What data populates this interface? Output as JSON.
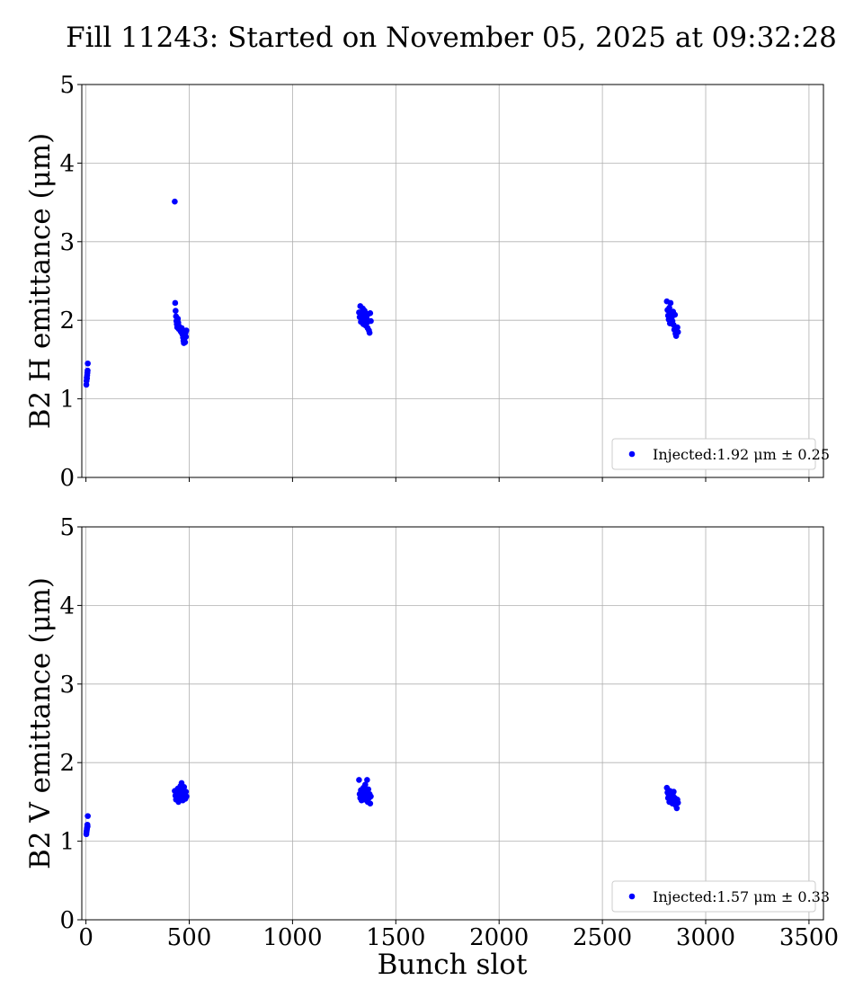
{
  "figure": {
    "title": "Fill 11243: Started on November 05, 2025 at 09:32:28",
    "xlabel": "Bunch slot",
    "point_color": "#0000ff"
  },
  "chart_data": [
    {
      "type": "scatter",
      "ylabel": "B2 H emittance (μm)",
      "xlim": [
        -20,
        3570
      ],
      "ylim": [
        0,
        5
      ],
      "xticks": [
        0,
        500,
        1000,
        1500,
        2000,
        2500,
        3000,
        3500
      ],
      "yticks": [
        0,
        1,
        2,
        3,
        4,
        5
      ],
      "grid": true,
      "show_xtick_labels": false,
      "legend": {
        "label": "Injected:1.92 μm ± 0.25",
        "placement": "lower-right"
      },
      "series": [
        {
          "color": "#0000ff",
          "points": [
            [
              2,
              1.18
            ],
            [
              3,
              1.23
            ],
            [
              4,
              1.27
            ],
            [
              5,
              1.26
            ],
            [
              6,
              1.3
            ],
            [
              7,
              1.33
            ],
            [
              8,
              1.36
            ],
            [
              9,
              1.45
            ],
            [
              430,
              3.51
            ],
            [
              432,
              2.22
            ],
            [
              434,
              2.12
            ],
            [
              436,
              2.05
            ],
            [
              438,
              1.99
            ],
            [
              440,
              1.95
            ],
            [
              442,
              1.91
            ],
            [
              445,
              2.02
            ],
            [
              447,
              1.97
            ],
            [
              449,
              1.89
            ],
            [
              452,
              1.92
            ],
            [
              455,
              1.88
            ],
            [
              458,
              1.86
            ],
            [
              461,
              1.85
            ],
            [
              464,
              1.9
            ],
            [
              467,
              1.82
            ],
            [
              470,
              1.78
            ],
            [
              472,
              1.74
            ],
            [
              474,
              1.71
            ],
            [
              476,
              1.76
            ],
            [
              478,
              1.8
            ],
            [
              480,
              1.72
            ],
            [
              482,
              1.84
            ],
            [
              484,
              1.79
            ],
            [
              486,
              1.87
            ],
            [
              1322,
              2.1
            ],
            [
              1325,
              2.04
            ],
            [
              1328,
              2.18
            ],
            [
              1331,
              1.98
            ],
            [
              1334,
              2.08
            ],
            [
              1337,
              2.02
            ],
            [
              1340,
              2.15
            ],
            [
              1343,
              1.95
            ],
            [
              1346,
              2.06
            ],
            [
              1349,
              2.12
            ],
            [
              1352,
              2.0
            ],
            [
              1355,
              1.93
            ],
            [
              1358,
              2.03
            ],
            [
              1361,
              1.97
            ],
            [
              1364,
              1.9
            ],
            [
              1367,
              2.08
            ],
            [
              1370,
              1.87
            ],
            [
              1373,
              1.84
            ],
            [
              1376,
              2.09
            ],
            [
              1379,
              1.99
            ],
            [
              2812,
              2.24
            ],
            [
              2815,
              2.13
            ],
            [
              2818,
              2.06
            ],
            [
              2821,
              2.01
            ],
            [
              2824,
              2.16
            ],
            [
              2827,
              1.96
            ],
            [
              2830,
              2.22
            ],
            [
              2833,
              2.09
            ],
            [
              2836,
              2.04
            ],
            [
              2839,
              1.99
            ],
            [
              2842,
              2.11
            ],
            [
              2845,
              1.94
            ],
            [
              2848,
              1.88
            ],
            [
              2851,
              2.07
            ],
            [
              2854,
              1.83
            ],
            [
              2857,
              1.8
            ],
            [
              2860,
              1.86
            ],
            [
              2863,
              1.91
            ],
            [
              2866,
              1.85
            ]
          ]
        }
      ]
    },
    {
      "type": "scatter",
      "ylabel": "B2 V emittance (μm)",
      "xlim": [
        -20,
        3570
      ],
      "ylim": [
        0,
        5
      ],
      "xticks": [
        0,
        500,
        1000,
        1500,
        2000,
        2500,
        3000,
        3500
      ],
      "yticks": [
        0,
        1,
        2,
        3,
        4,
        5
      ],
      "grid": true,
      "show_xtick_labels": true,
      "legend": {
        "label": "Injected:1.57 μm ± 0.33",
        "placement": "lower-right"
      },
      "series": [
        {
          "color": "#0000ff",
          "points": [
            [
              2,
              1.09
            ],
            [
              3,
              1.12
            ],
            [
              4,
              1.14
            ],
            [
              5,
              1.16
            ],
            [
              6,
              1.18
            ],
            [
              7,
              1.21
            ],
            [
              8,
              1.19
            ],
            [
              9,
              1.32
            ],
            [
              430,
              1.64
            ],
            [
              433,
              1.58
            ],
            [
              436,
              1.53
            ],
            [
              439,
              1.61
            ],
            [
              442,
              1.56
            ],
            [
              445,
              1.67
            ],
            [
              448,
              1.5
            ],
            [
              451,
              1.6
            ],
            [
              454,
              1.55
            ],
            [
              457,
              1.7
            ],
            [
              460,
              1.63
            ],
            [
              463,
              1.74
            ],
            [
              466,
              1.58
            ],
            [
              469,
              1.52
            ],
            [
              472,
              1.66
            ],
            [
              475,
              1.69
            ],
            [
              478,
              1.6
            ],
            [
              481,
              1.54
            ],
            [
              484,
              1.63
            ],
            [
              487,
              1.57
            ],
            [
              1322,
              1.78
            ],
            [
              1325,
              1.6
            ],
            [
              1328,
              1.55
            ],
            [
              1331,
              1.65
            ],
            [
              1334,
              1.52
            ],
            [
              1337,
              1.62
            ],
            [
              1340,
              1.57
            ],
            [
              1343,
              1.68
            ],
            [
              1346,
              1.53
            ],
            [
              1349,
              1.6
            ],
            [
              1352,
              1.72
            ],
            [
              1355,
              1.58
            ],
            [
              1358,
              1.63
            ],
            [
              1361,
              1.78
            ],
            [
              1364,
              1.5
            ],
            [
              1367,
              1.66
            ],
            [
              1370,
              1.55
            ],
            [
              1373,
              1.6
            ],
            [
              1376,
              1.48
            ],
            [
              1379,
              1.57
            ],
            [
              2812,
              1.68
            ],
            [
              2815,
              1.62
            ],
            [
              2818,
              1.55
            ],
            [
              2821,
              1.59
            ],
            [
              2824,
              1.5
            ],
            [
              2827,
              1.64
            ],
            [
              2830,
              1.57
            ],
            [
              2833,
              1.53
            ],
            [
              2836,
              1.61
            ],
            [
              2839,
              1.48
            ],
            [
              2842,
              1.58
            ],
            [
              2845,
              1.63
            ],
            [
              2848,
              1.52
            ],
            [
              2851,
              1.55
            ],
            [
              2854,
              1.46
            ],
            [
              2857,
              1.5
            ],
            [
              2860,
              1.42
            ],
            [
              2863,
              1.53
            ],
            [
              2866,
              1.49
            ]
          ]
        }
      ]
    }
  ]
}
